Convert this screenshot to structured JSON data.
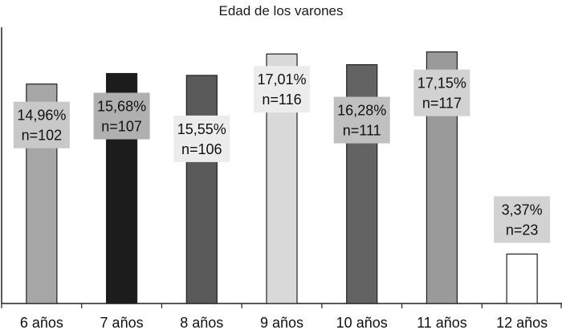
{
  "chart_data": {
    "type": "bar",
    "title": "Edad de los varones",
    "xlabel": "",
    "ylabel": "",
    "ylim": [
      0,
      18.5
    ],
    "grid": false,
    "legend": "none",
    "categories": [
      "6 años",
      "7 años",
      "8 años",
      "9 años",
      "10 años",
      "11 años",
      "12 años"
    ],
    "series": [
      {
        "values": [
          14.96,
          15.68,
          15.55,
          17.01,
          16.28,
          17.15,
          3.37
        ],
        "counts": [
          102,
          107,
          106,
          116,
          111,
          117,
          23
        ],
        "value_labels": [
          "14,96%",
          "15,68%",
          "15,55%",
          "17,01%",
          "16,28%",
          "17,15%",
          "3,37%"
        ],
        "count_labels": [
          "n=102",
          "n=107",
          "n=106",
          "n=116",
          "n=111",
          "n=117",
          "n=23"
        ],
        "bar_colors": [
          "#a6a6a6",
          "#1c1c1c",
          "#5a5a5a",
          "#d9d9d9",
          "#636363",
          "#9a9a9a",
          "#ffffff"
        ],
        "label_box_colors": [
          "#c8c8c8",
          "#b0b0b0",
          "#ececec",
          "#ececec",
          "#c0c0c0",
          "#d2d2d2",
          "#d2d2d2"
        ]
      }
    ]
  }
}
